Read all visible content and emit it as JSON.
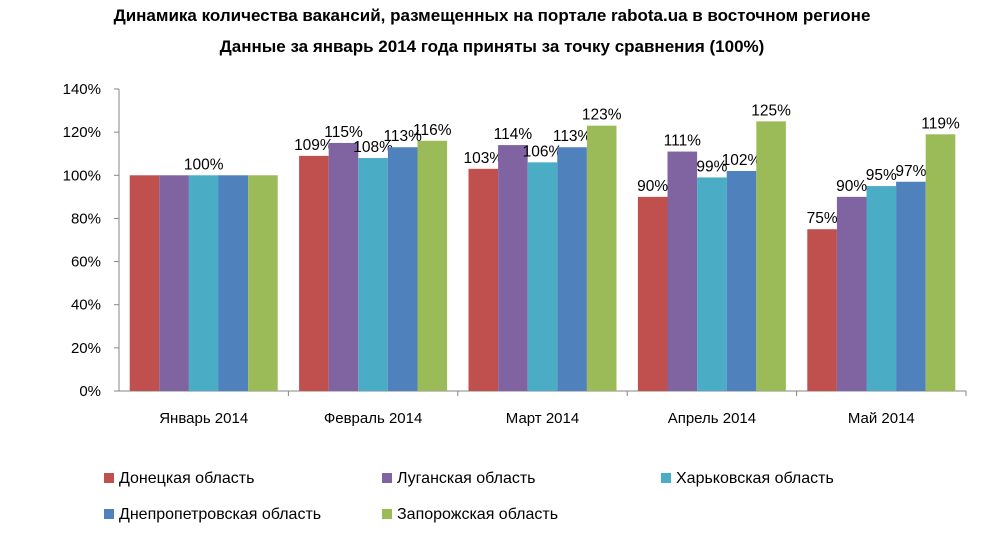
{
  "chart_data": {
    "type": "bar",
    "title": "Динамика количества вакансий, размещенных на портале rabota.ua в восточном регионе",
    "subtitle": "Данные за январь 2014 года приняты за точку сравнения (100%)",
    "categories": [
      "Январь 2014",
      "Февраль 2014",
      "Март 2014",
      "Апрель 2014",
      "Май 2014"
    ],
    "y_ticks": [
      "0%",
      "20%",
      "40%",
      "60%",
      "80%",
      "100%",
      "120%",
      "140%"
    ],
    "ylim": [
      0,
      140
    ],
    "grid": false,
    "legend_position": "bottom",
    "series": [
      {
        "name": "Донецкая область",
        "color": "#c0504d",
        "values": [
          100,
          109,
          103,
          90,
          75
        ]
      },
      {
        "name": "Луганская область",
        "color": "#8064a2",
        "values": [
          100,
          115,
          114,
          111,
          90
        ]
      },
      {
        "name": "Харьковская область",
        "color": "#4bacc6",
        "values": [
          100,
          108,
          106,
          99,
          95
        ]
      },
      {
        "name": "Днепропетровская область",
        "color": "#4f81bd",
        "values": [
          100,
          113,
          113,
          102,
          97
        ]
      },
      {
        "name": "Запорожская область",
        "color": "#9bbb59",
        "values": [
          100,
          116,
          123,
          125,
          119
        ]
      }
    ],
    "data_labels": [
      [
        "",
        "109%",
        "103%",
        "90%",
        "75%"
      ],
      [
        "",
        "115%",
        "114%",
        "111%",
        "90%"
      ],
      [
        "100%",
        "108%",
        "106%",
        "99%",
        "95%"
      ],
      [
        "",
        "113%",
        "113%",
        "102%",
        "97%"
      ],
      [
        "",
        "116%",
        "123%",
        "125%",
        "119%"
      ]
    ]
  }
}
